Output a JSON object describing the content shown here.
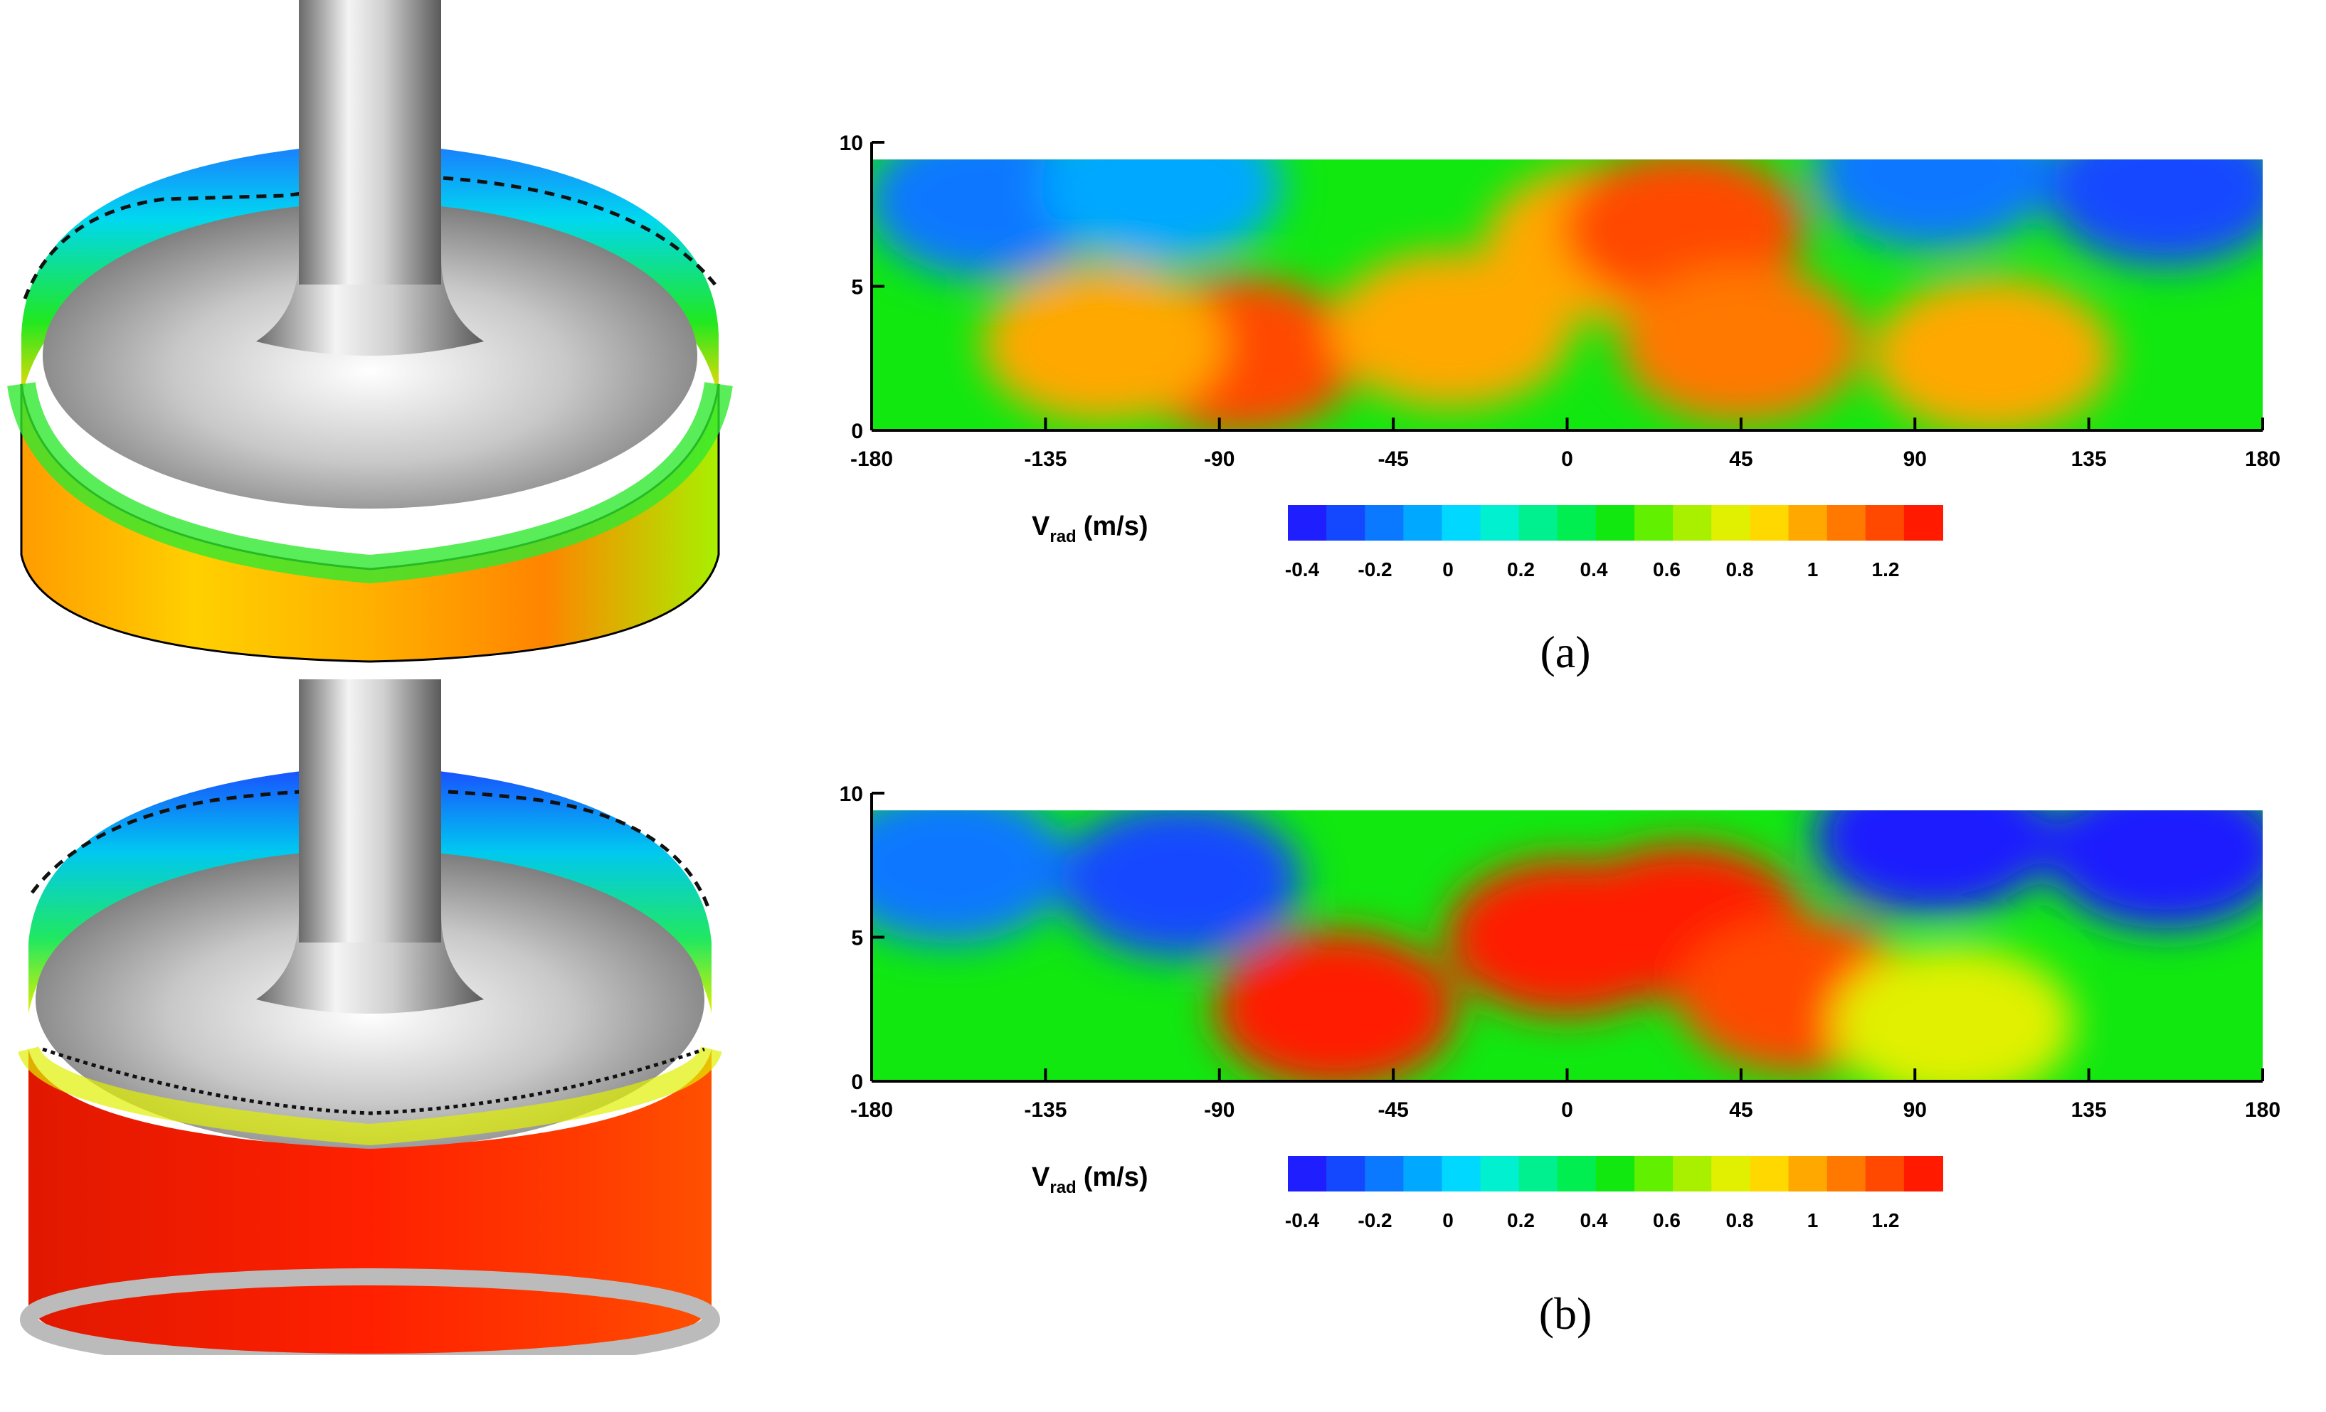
{
  "captions": {
    "a": "(a)",
    "b": "(b)"
  },
  "colorbar": {
    "label_main": "V",
    "label_sub": "rad",
    "label_unit": "(m/s)",
    "ticks": [
      "-0.4",
      "-0.2",
      "0",
      "0.2",
      "0.4",
      "0.6",
      "0.8",
      "1",
      "1.2"
    ],
    "colors": [
      "#1e1eff",
      "#1448ff",
      "#0a78ff",
      "#00a8ff",
      "#00d8ff",
      "#00f0d0",
      "#00f090",
      "#00ee50",
      "#10e810",
      "#60f000",
      "#a8f000",
      "#e0f000",
      "#ffd800",
      "#ffa800",
      "#ff7800",
      "#ff4800",
      "#ff1a00"
    ]
  },
  "chart_data": [
    {
      "type": "heatmap",
      "panel": "(a)",
      "xlabel": "",
      "ylabel": "",
      "xlim": [
        -180,
        180
      ],
      "ylim": [
        0,
        10
      ],
      "x_ticks": [
        "-180",
        "-135",
        "-90",
        "-45",
        "0",
        "45",
        "90",
        "135",
        "180"
      ],
      "y_ticks": [
        "0",
        "5",
        "10"
      ],
      "value_range": [
        -0.5,
        1.35
      ],
      "z_label": "V_rad (m/s)",
      "field_blobs": [
        {
          "x": -150,
          "y": 8.0,
          "value": -0.25
        },
        {
          "x": -105,
          "y": 8.5,
          "value": -0.15
        },
        {
          "x": -85,
          "y": 2.6,
          "value": 1.2
        },
        {
          "x": -120,
          "y": 3.0,
          "value": 0.95
        },
        {
          "x": -30,
          "y": 3.5,
          "value": 0.95
        },
        {
          "x": 10,
          "y": 6.5,
          "value": 0.95
        },
        {
          "x": 30,
          "y": 7.0,
          "value": 1.15
        },
        {
          "x": 45,
          "y": 3.0,
          "value": 1.05
        },
        {
          "x": 110,
          "y": 2.6,
          "value": 0.95
        },
        {
          "x": 155,
          "y": 8.4,
          "value": -0.3
        },
        {
          "x": 95,
          "y": 9.0,
          "value": -0.2
        }
      ]
    },
    {
      "type": "heatmap",
      "panel": "(b)",
      "xlabel": "",
      "ylabel": "",
      "xlim": [
        -180,
        180
      ],
      "ylim": [
        0,
        10
      ],
      "x_ticks": [
        "-180",
        "-135",
        "-90",
        "-45",
        "0",
        "45",
        "90",
        "135",
        "180"
      ],
      "y_ticks": [
        "0",
        "5",
        "10"
      ],
      "value_range": [
        -0.5,
        1.35
      ],
      "z_label": "V_rad (m/s)",
      "field_blobs": [
        {
          "x": -160,
          "y": 7.5,
          "value": -0.2
        },
        {
          "x": -100,
          "y": 7.0,
          "value": -0.35
        },
        {
          "x": -60,
          "y": 2.5,
          "value": 1.3
        },
        {
          "x": 0,
          "y": 5.0,
          "value": 1.45
        },
        {
          "x": 30,
          "y": 5.5,
          "value": 1.4
        },
        {
          "x": 60,
          "y": 3.0,
          "value": 1.15
        },
        {
          "x": 100,
          "y": 2.0,
          "value": 0.75
        },
        {
          "x": 95,
          "y": 8.5,
          "value": -0.45
        },
        {
          "x": 155,
          "y": 8.0,
          "value": -0.4
        }
      ]
    }
  ]
}
